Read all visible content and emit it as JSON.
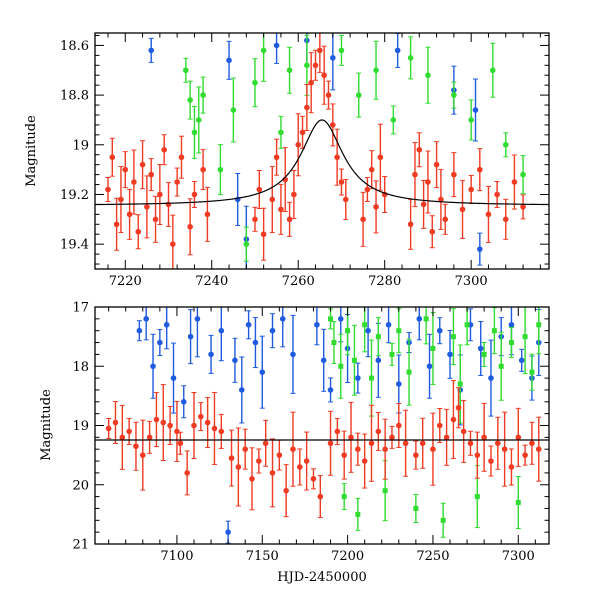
{
  "chart_data": [
    {
      "type": "scatter",
      "xlim": [
        7213,
        7318
      ],
      "ylim": [
        19.5,
        18.55
      ],
      "y_inverted": true,
      "ylabel": "Magnitude",
      "xlabel": "",
      "x_ticks": [
        7220,
        7240,
        7260,
        7280,
        7300
      ],
      "y_ticks": [
        18.6,
        18.8,
        19,
        19.2,
        19.4
      ],
      "y_tick_labels": [
        "18.6",
        "18.8",
        "19",
        "19.2",
        "19.4"
      ],
      "grid": false,
      "series": [
        {
          "color": "#f03a22",
          "points": [
            [
              7216,
              19.18
            ],
            [
              7217,
              19.05
            ],
            [
              7218,
              19.32
            ],
            [
              7219,
              19.22
            ],
            [
              7220,
              19.1
            ],
            [
              7221,
              19.28
            ],
            [
              7222,
              19.15
            ],
            [
              7223,
              19.35
            ],
            [
              7224,
              19.08
            ],
            [
              7225,
              19.25
            ],
            [
              7226,
              19.12
            ],
            [
              7227,
              19.3
            ],
            [
              7228,
              19.2
            ],
            [
              7229,
              19.02
            ],
            [
              7230,
              19.24
            ],
            [
              7231,
              19.4
            ],
            [
              7232,
              19.15
            ],
            [
              7233,
              19.05
            ],
            [
              7235,
              19.33
            ],
            [
              7236,
              19.2
            ],
            [
              7238,
              19.1
            ],
            [
              7239,
              19.28
            ],
            [
              7250,
              19.3
            ],
            [
              7251,
              19.18
            ],
            [
              7252,
              19.36
            ],
            [
              7254,
              19.22
            ],
            [
              7255,
              19.05
            ],
            [
              7256,
              19.26
            ],
            [
              7257,
              19.14
            ],
            [
              7258,
              19.3
            ],
            [
              7259,
              19.2
            ],
            [
              7260,
              19.0
            ],
            [
              7261,
              18.95
            ],
            [
              7262,
              18.85
            ],
            [
              7263,
              18.75
            ],
            [
              7264,
              18.68
            ],
            [
              7265,
              18.62
            ],
            [
              7266,
              18.72
            ],
            [
              7267,
              18.8
            ],
            [
              7268,
              18.92
            ],
            [
              7269,
              19.05
            ],
            [
              7270,
              19.15
            ],
            [
              7271,
              19.22
            ],
            [
              7275,
              19.3
            ],
            [
              7276,
              19.18
            ],
            [
              7277,
              19.1
            ],
            [
              7278,
              19.25
            ],
            [
              7279,
              19.05
            ],
            [
              7280,
              19.2
            ],
            [
              7286,
              19.32
            ],
            [
              7287,
              19.12
            ],
            [
              7288,
              19.02
            ],
            [
              7289,
              19.24
            ],
            [
              7290,
              19.15
            ],
            [
              7291,
              19.35
            ],
            [
              7292,
              19.08
            ],
            [
              7293,
              19.22
            ],
            [
              7294,
              19.3
            ],
            [
              7296,
              19.12
            ],
            [
              7298,
              19.26
            ],
            [
              7300,
              19.18
            ],
            [
              7302,
              19.1
            ],
            [
              7304,
              19.28
            ],
            [
              7306,
              19.2
            ],
            [
              7308,
              19.3
            ],
            [
              7310,
              19.15
            ],
            [
              7312,
              19.25
            ]
          ]
        },
        {
          "color": "#2fdc2f",
          "points": [
            [
              7234,
              18.7
            ],
            [
              7235,
              18.82
            ],
            [
              7236,
              18.95
            ],
            [
              7237,
              18.9
            ],
            [
              7238,
              18.8
            ],
            [
              7242,
              19.1
            ],
            [
              7245,
              18.86
            ],
            [
              7248,
              19.4
            ],
            [
              7250,
              18.75
            ],
            [
              7252,
              18.62
            ],
            [
              7256,
              18.95
            ],
            [
              7258,
              18.7
            ],
            [
              7262,
              18.68
            ],
            [
              7270,
              18.62
            ],
            [
              7274,
              18.8
            ],
            [
              7278,
              18.7
            ],
            [
              7282,
              18.9
            ],
            [
              7286,
              18.65
            ],
            [
              7290,
              18.72
            ],
            [
              7296,
              18.8
            ],
            [
              7300,
              18.9
            ],
            [
              7305,
              18.7
            ],
            [
              7308,
              19.0
            ],
            [
              7312,
              19.12
            ]
          ]
        },
        {
          "color": "#1e5be0",
          "points": [
            [
              7226,
              18.62
            ],
            [
              7244,
              18.66
            ],
            [
              7246,
              19.22
            ],
            [
              7248,
              19.38
            ],
            [
              7255,
              18.6
            ],
            [
              7262,
              18.58
            ],
            [
              7268,
              18.65
            ],
            [
              7283,
              18.62
            ],
            [
              7296,
              18.78
            ],
            [
              7301,
              18.86
            ],
            [
              7302,
              19.42
            ]
          ]
        }
      ],
      "model_curve": {
        "baseline": 19.245,
        "peak_mag": 18.9,
        "t0": 7265.5,
        "tE": 6
      }
    },
    {
      "type": "scatter",
      "xlim": [
        7052,
        7318
      ],
      "ylim": [
        21,
        17
      ],
      "y_inverted": true,
      "ylabel": "Magnitude",
      "xlabel": "HJD-2450000",
      "x_ticks": [
        7100,
        7150,
        7200,
        7250,
        7300
      ],
      "y_ticks": [
        17,
        18,
        19,
        20,
        21
      ],
      "y_tick_labels": [
        "17",
        "18",
        "19",
        "20",
        "21"
      ],
      "grid": false,
      "series": [
        {
          "color": "#f03a22",
          "points": [
            [
              7060,
              19.05
            ],
            [
              7064,
              18.95
            ],
            [
              7068,
              19.2
            ],
            [
              7072,
              19.1
            ],
            [
              7076,
              19.35
            ],
            [
              7080,
              19.5
            ],
            [
              7084,
              19.2
            ],
            [
              7088,
              18.9
            ],
            [
              7092,
              18.95
            ],
            [
              7096,
              19.0
            ],
            [
              7100,
              19.1
            ],
            [
              7102,
              19.3
            ],
            [
              7106,
              19.8
            ],
            [
              7110,
              19.0
            ],
            [
              7114,
              18.85
            ],
            [
              7118,
              18.95
            ],
            [
              7122,
              19.05
            ],
            [
              7126,
              19.1
            ],
            [
              7132,
              19.55
            ],
            [
              7136,
              19.7
            ],
            [
              7140,
              19.4
            ],
            [
              7144,
              19.9
            ],
            [
              7148,
              19.6
            ],
            [
              7152,
              19.3
            ],
            [
              7156,
              19.8
            ],
            [
              7160,
              19.5
            ],
            [
              7164,
              20.1
            ],
            [
              7168,
              19.4
            ],
            [
              7172,
              19.7
            ],
            [
              7176,
              19.6
            ],
            [
              7180,
              19.9
            ],
            [
              7184,
              20.2
            ],
            [
              7190,
              19.3
            ],
            [
              7194,
              19.1
            ],
            [
              7198,
              19.5
            ],
            [
              7202,
              19.2
            ],
            [
              7206,
              19.4
            ],
            [
              7210,
              19.6
            ],
            [
              7214,
              19.3
            ],
            [
              7218,
              19.1
            ],
            [
              7222,
              19.4
            ],
            [
              7226,
              19.2
            ],
            [
              7230,
              19.0
            ],
            [
              7234,
              19.3
            ],
            [
              7240,
              19.5
            ],
            [
              7244,
              19.3
            ],
            [
              7250,
              19.4
            ],
            [
              7254,
              19.0
            ],
            [
              7258,
              19.2
            ],
            [
              7262,
              18.9
            ],
            [
              7265,
              18.7
            ],
            [
              7268,
              19.1
            ],
            [
              7272,
              19.3
            ],
            [
              7276,
              19.5
            ],
            [
              7280,
              19.2
            ],
            [
              7284,
              19.6
            ],
            [
              7288,
              19.3
            ],
            [
              7292,
              19.4
            ],
            [
              7296,
              19.7
            ],
            [
              7300,
              19.2
            ],
            [
              7304,
              19.5
            ],
            [
              7308,
              19.3
            ],
            [
              7312,
              19.4
            ]
          ]
        },
        {
          "color": "#2fdc2f",
          "points": [
            [
              7190,
              17.2
            ],
            [
              7192,
              17.6
            ],
            [
              7196,
              18.0
            ],
            [
              7198,
              20.2
            ],
            [
              7200,
              17.4
            ],
            [
              7204,
              17.9
            ],
            [
              7206,
              20.5
            ],
            [
              7210,
              17.3
            ],
            [
              7214,
              18.2
            ],
            [
              7218,
              17.5
            ],
            [
              7222,
              20.1
            ],
            [
              7226,
              17.8
            ],
            [
              7230,
              17.4
            ],
            [
              7236,
              18.1
            ],
            [
              7240,
              20.4
            ],
            [
              7246,
              17.2
            ],
            [
              7250,
              17.7
            ],
            [
              7256,
              20.6
            ],
            [
              7262,
              17.5
            ],
            [
              7266,
              18.3
            ],
            [
              7270,
              17.3
            ],
            [
              7276,
              20.2
            ],
            [
              7280,
              17.8
            ],
            [
              7286,
              17.4
            ],
            [
              7290,
              18.0
            ],
            [
              7296,
              17.6
            ],
            [
              7300,
              20.3
            ],
            [
              7304,
              17.5
            ],
            [
              7308,
              18.1
            ],
            [
              7312,
              17.3
            ]
          ]
        },
        {
          "color": "#1e5be0",
          "points": [
            [
              7078,
              17.4
            ],
            [
              7082,
              17.2
            ],
            [
              7086,
              18.0
            ],
            [
              7090,
              17.6
            ],
            [
              7094,
              17.3
            ],
            [
              7098,
              18.2
            ],
            [
              7104,
              18.6
            ],
            [
              7108,
              17.5
            ],
            [
              7112,
              17.2
            ],
            [
              7120,
              17.8
            ],
            [
              7126,
              17.4
            ],
            [
              7130,
              20.8
            ],
            [
              7134,
              17.9
            ],
            [
              7138,
              18.4
            ],
            [
              7142,
              17.3
            ],
            [
              7146,
              17.6
            ],
            [
              7150,
              18.1
            ],
            [
              7156,
              17.4
            ],
            [
              7162,
              17.2
            ],
            [
              7168,
              17.8
            ],
            [
              7182,
              17.3
            ],
            [
              7186,
              17.9
            ],
            [
              7190,
              18.4
            ],
            [
              7196,
              17.2
            ],
            [
              7200,
              17.7
            ],
            [
              7206,
              18.2
            ],
            [
              7212,
              17.4
            ],
            [
              7218,
              17.9
            ],
            [
              7224,
              17.3
            ],
            [
              7230,
              18.3
            ],
            [
              7236,
              17.6
            ],
            [
              7242,
              17.2
            ],
            [
              7248,
              18.0
            ],
            [
              7254,
              17.4
            ],
            [
              7260,
              17.8
            ],
            [
              7266,
              18.4
            ],
            [
              7272,
              17.3
            ],
            [
              7278,
              17.7
            ],
            [
              7284,
              18.2
            ],
            [
              7290,
              17.5
            ],
            [
              7296,
              17.3
            ],
            [
              7302,
              17.9
            ],
            [
              7308,
              18.2
            ],
            [
              7312,
              17.6
            ]
          ]
        }
      ],
      "baseline_line": 19.245
    }
  ]
}
